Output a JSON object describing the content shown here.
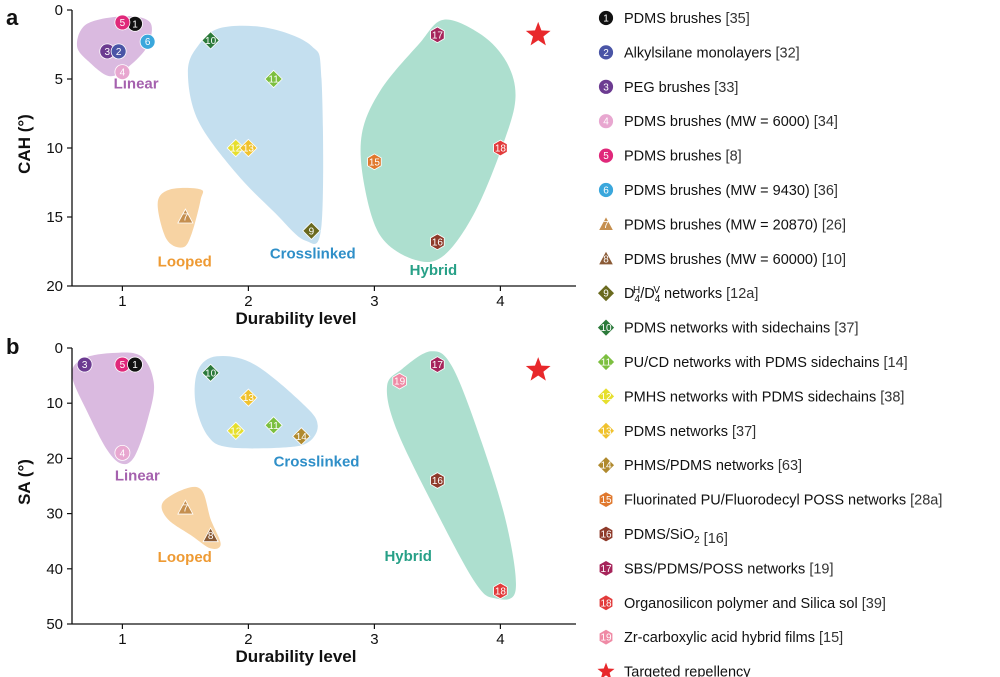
{
  "colors": {
    "linear_fill": "#d7b4dd",
    "linear_text": "#a561ae",
    "looped_fill": "#f6cf9b",
    "looped_text": "#ee9a33",
    "crosslinked_fill": "#bfdcee",
    "crosslinked_text": "#2f8fc8",
    "hybrid_fill": "#a6dccb",
    "hybrid_text": "#27a087",
    "star": "#e8282b"
  },
  "legend": [
    {
      "num": "1",
      "label": "PDMS brushes",
      "ref": "[35]",
      "shape": "circle",
      "color": "#111111"
    },
    {
      "num": "2",
      "label": "Alkylsilane monolayers",
      "ref": "[32]",
      "shape": "circle",
      "color": "#4a55a6"
    },
    {
      "num": "3",
      "label": "PEG brushes",
      "ref": "[33]",
      "shape": "circle",
      "color": "#6c3b91"
    },
    {
      "num": "4",
      "label": "PDMS brushes (MW = 6000)",
      "ref": "[34]",
      "shape": "circle",
      "color": "#e8a7d0"
    },
    {
      "num": "5",
      "label": "PDMS brushes",
      "ref": "[8]",
      "shape": "circle",
      "color": "#e0287a"
    },
    {
      "num": "6",
      "label": "PDMS brushes (MW = 9430)",
      "ref": "[36]",
      "shape": "circle",
      "color": "#3aa7dc"
    },
    {
      "num": "7",
      "label": "PDMS brushes (MW = 20870)",
      "ref": "[26]",
      "shape": "triangle",
      "color": "#c58f4f"
    },
    {
      "num": "8",
      "label": "PDMS brushes (MW = 60000)",
      "ref": "[10]",
      "shape": "triangle",
      "color": "#8a5a35"
    },
    {
      "num": "9",
      "label_parts": [
        "D",
        "4",
        "H",
        "/D",
        "4",
        "V",
        " networks"
      ],
      "ref": "[12a]",
      "shape": "diamond",
      "color": "#6a6a1f"
    },
    {
      "num": "10",
      "label": "PDMS networks with sidechains",
      "ref": "[37]",
      "shape": "diamond",
      "color": "#2c7a3b"
    },
    {
      "num": "11",
      "label": "PU/CD networks with PDMS sidechains",
      "ref": "[14]",
      "shape": "diamond",
      "color": "#7cbf3f"
    },
    {
      "num": "12",
      "label": "PMHS networks with PDMS sidechains",
      "ref": "[38]",
      "shape": "diamond",
      "color": "#e6df2e"
    },
    {
      "num": "13",
      "label": "PDMS networks",
      "ref": "[37]",
      "shape": "diamond",
      "color": "#f0c22e"
    },
    {
      "num": "14",
      "label": "PHMS/PDMS networks",
      "ref": "[63]",
      "shape": "diamond",
      "color": "#b08a2e"
    },
    {
      "num": "15",
      "label": "Fluorinated PU/Fluorodecyl POSS networks",
      "ref": "[28a]",
      "shape": "hexagon",
      "color": "#e0782d"
    },
    {
      "num": "16",
      "label_parts": [
        "PDMS/SiO",
        "2",
        ""
      ],
      "ref": "[16]",
      "shape": "hexagon",
      "color": "#8e3a2a"
    },
    {
      "num": "17",
      "label": "SBS/PDMS/POSS networks",
      "ref": "[19]",
      "shape": "hexagon",
      "color": "#a6245a"
    },
    {
      "num": "18",
      "label": "Organosilicon polymer and Silica sol",
      "ref": "[39]",
      "shape": "hexagon",
      "color": "#e23b3b"
    },
    {
      "num": "19",
      "label": "Zr-carboxylic acid hybrid films",
      "ref": "[15]",
      "shape": "hexagon",
      "color": "#ef8aa5"
    },
    {
      "num": "",
      "label": "Targeted repellency",
      "ref": "",
      "shape": "star",
      "color": "#e8282b"
    }
  ],
  "chart_data": [
    {
      "type": "scatter",
      "panel": "a",
      "xlabel": "Durability level",
      "ylabel": "CAH (°)",
      "xlim": [
        0.6,
        4.6
      ],
      "ylim": [
        20,
        0
      ],
      "y_inverted": true,
      "xticks": [
        1,
        2,
        3,
        4
      ],
      "yticks": [
        0,
        5,
        10,
        15,
        20
      ],
      "grid": false,
      "regions": [
        {
          "name": "Linear",
          "poly": [
            [
              0.72,
              1.0
            ],
            [
              1.02,
              0.45
            ],
            [
              1.22,
              0.9
            ],
            [
              1.2,
              2.6
            ],
            [
              1.05,
              4.1
            ],
            [
              0.9,
              4.8
            ],
            [
              0.74,
              3.8
            ],
            [
              0.64,
              2.6
            ]
          ],
          "label_at": [
            0.93,
            5.7
          ]
        },
        {
          "name": "Looped",
          "poly": [
            [
              1.28,
              14.0
            ],
            [
              1.38,
              13.0
            ],
            [
              1.62,
              13.0
            ],
            [
              1.62,
              13.8
            ],
            [
              1.55,
              16.2
            ],
            [
              1.48,
              17.2
            ],
            [
              1.35,
              16.6
            ]
          ],
          "label_at": [
            1.28,
            18.6
          ]
        },
        {
          "name": "Crosslinked",
          "poly": [
            [
              1.6,
              2.6
            ],
            [
              1.78,
              1.3
            ],
            [
              2.15,
              1.3
            ],
            [
              2.5,
              2.6
            ],
            [
              2.58,
              5.0
            ],
            [
              2.58,
              15.6
            ],
            [
              2.45,
              16.7
            ],
            [
              2.2,
              14.6
            ],
            [
              1.9,
              11.8
            ],
            [
              1.6,
              8.0
            ],
            [
              1.52,
              4.5
            ]
          ],
          "label_at": [
            2.17,
            18.0
          ]
        },
        {
          "name": "Hybrid",
          "poly": [
            [
              3.05,
              5.8
            ],
            [
              3.35,
              2.5
            ],
            [
              3.55,
              0.7
            ],
            [
              3.85,
              1.8
            ],
            [
              4.05,
              3.8
            ],
            [
              4.12,
              6.3
            ],
            [
              4.03,
              9.5
            ],
            [
              3.8,
              14.6
            ],
            [
              3.55,
              17.8
            ],
            [
              3.32,
              18.1
            ],
            [
              3.05,
              16.4
            ],
            [
              2.92,
              12.7
            ],
            [
              2.9,
              9.0
            ]
          ],
          "label_at": [
            3.28,
            19.2
          ]
        }
      ],
      "points": [
        {
          "id": "1",
          "x": 1.1,
          "y": 1.0
        },
        {
          "id": "5",
          "x": 1.0,
          "y": 0.9
        },
        {
          "id": "6",
          "x": 1.2,
          "y": 2.3
        },
        {
          "id": "3",
          "x": 0.88,
          "y": 3.0
        },
        {
          "id": "2",
          "x": 0.97,
          "y": 3.0
        },
        {
          "id": "4",
          "x": 1.0,
          "y": 4.5
        },
        {
          "id": "7",
          "x": 1.5,
          "y": 15.0
        },
        {
          "id": "10",
          "x": 1.7,
          "y": 2.2
        },
        {
          "id": "11",
          "x": 2.2,
          "y": 5.0
        },
        {
          "id": "12",
          "x": 1.9,
          "y": 10.0
        },
        {
          "id": "13",
          "x": 2.0,
          "y": 10.0
        },
        {
          "id": "9",
          "x": 2.5,
          "y": 16.0
        },
        {
          "id": "17",
          "x": 3.5,
          "y": 1.8
        },
        {
          "id": "15",
          "x": 3.0,
          "y": 11.0
        },
        {
          "id": "18",
          "x": 4.0,
          "y": 10.0
        },
        {
          "id": "16",
          "x": 3.5,
          "y": 16.8
        }
      ],
      "star": {
        "x": 4.3,
        "y": 1.8
      }
    },
    {
      "type": "scatter",
      "panel": "b",
      "xlabel": "Durability level",
      "ylabel": "SA (°)",
      "xlim": [
        0.6,
        4.6
      ],
      "ylim": [
        50,
        0
      ],
      "y_inverted": true,
      "xticks": [
        1,
        2,
        3,
        4
      ],
      "yticks": [
        0,
        10,
        20,
        30,
        40,
        50
      ],
      "grid": false,
      "regions": [
        {
          "name": "Linear",
          "poly": [
            [
              0.68,
              2.0
            ],
            [
              0.92,
              0.9
            ],
            [
              1.15,
              1.5
            ],
            [
              1.25,
              6.5
            ],
            [
              1.2,
              13.0
            ],
            [
              1.1,
              19.5
            ],
            [
              1.0,
              21.0
            ],
            [
              0.88,
              18.5
            ],
            [
              0.72,
              11.5
            ],
            [
              0.6,
              5.0
            ]
          ],
          "label_at": [
            0.94,
            24.0
          ]
        },
        {
          "name": "Looped",
          "poly": [
            [
              1.32,
              28.0
            ],
            [
              1.5,
              25.5
            ],
            [
              1.63,
              25.8
            ],
            [
              1.7,
              31.0
            ],
            [
              1.78,
              35.5
            ],
            [
              1.7,
              36.3
            ],
            [
              1.55,
              34.0
            ],
            [
              1.36,
              31.0
            ]
          ],
          "label_at": [
            1.28,
            38.8
          ]
        },
        {
          "name": "Crosslinked",
          "poly": [
            [
              1.6,
              4.0
            ],
            [
              1.75,
              1.5
            ],
            [
              2.05,
              3.0
            ],
            [
              2.45,
              10.5
            ],
            [
              2.55,
              14.0
            ],
            [
              2.48,
              17.0
            ],
            [
              2.3,
              18.0
            ],
            [
              1.85,
              18.0
            ],
            [
              1.68,
              16.0
            ],
            [
              1.58,
              10.0
            ]
          ],
          "label_at": [
            2.2,
            21.5
          ]
        },
        {
          "name": "Hybrid",
          "poly": [
            [
              3.1,
              7.0
            ],
            [
              3.22,
              3.8
            ],
            [
              3.45,
              0.6
            ],
            [
              3.62,
              3.5
            ],
            [
              3.85,
              17.0
            ],
            [
              4.05,
              32.0
            ],
            [
              4.12,
              44.0
            ],
            [
              3.95,
              45.3
            ],
            [
              3.8,
              42.5
            ],
            [
              3.5,
              30.0
            ],
            [
              3.18,
              15.0
            ]
          ],
          "label_at": [
            3.08,
            38.6
          ]
        }
      ],
      "points": [
        {
          "id": "3",
          "x": 0.7,
          "y": 3.0
        },
        {
          "id": "5",
          "x": 1.0,
          "y": 3.0
        },
        {
          "id": "1",
          "x": 1.1,
          "y": 3.0
        },
        {
          "id": "4",
          "x": 1.0,
          "y": 19.0
        },
        {
          "id": "10",
          "x": 1.7,
          "y": 4.5
        },
        {
          "id": "13",
          "x": 2.0,
          "y": 9.0
        },
        {
          "id": "11",
          "x": 2.2,
          "y": 14.0
        },
        {
          "id": "12",
          "x": 1.9,
          "y": 15.0
        },
        {
          "id": "14",
          "x": 2.42,
          "y": 16.0
        },
        {
          "id": "7",
          "x": 1.5,
          "y": 29.0
        },
        {
          "id": "8",
          "x": 1.7,
          "y": 34.0
        },
        {
          "id": "17",
          "x": 3.5,
          "y": 3.0
        },
        {
          "id": "19",
          "x": 3.2,
          "y": 6.0
        },
        {
          "id": "16",
          "x": 3.5,
          "y": 24.0
        },
        {
          "id": "18",
          "x": 4.0,
          "y": 44.0
        }
      ],
      "star": {
        "x": 4.3,
        "y": 4.0
      }
    }
  ]
}
